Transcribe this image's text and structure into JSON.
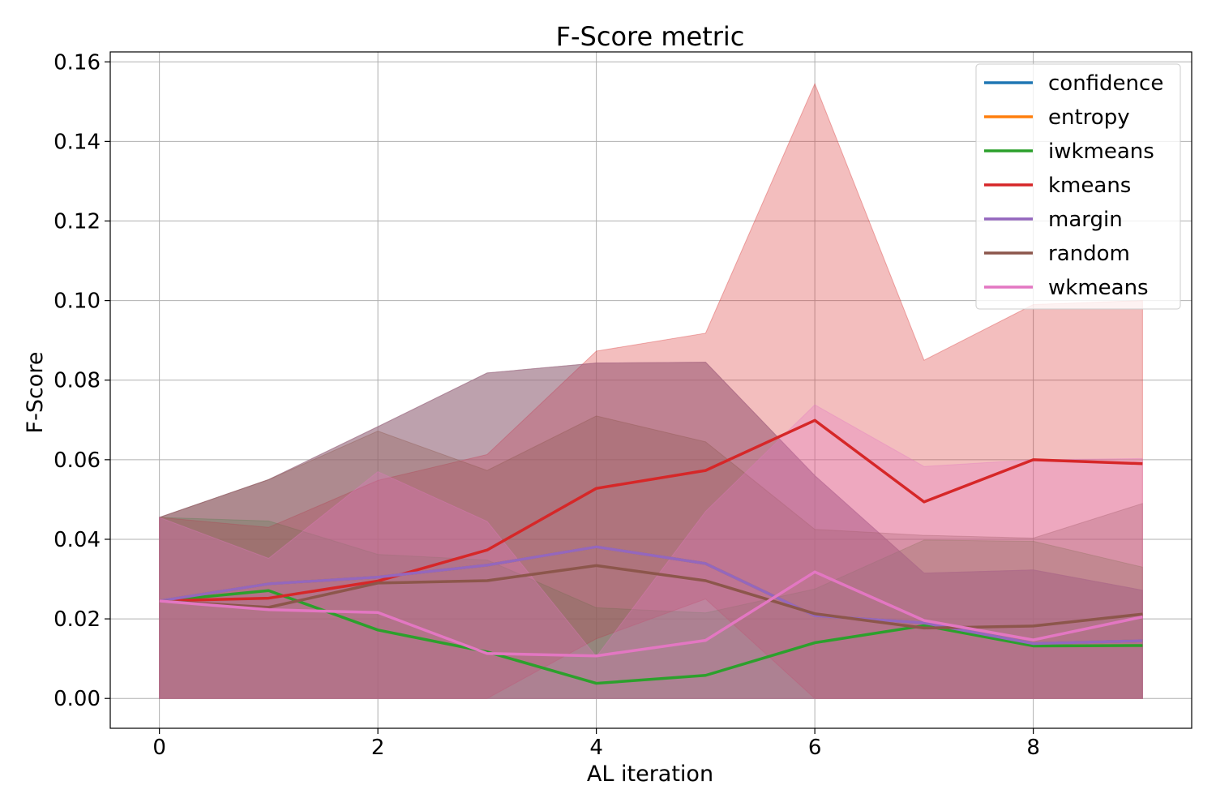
{
  "chart_data": {
    "type": "line",
    "title": "F-Score metric",
    "xlabel": "AL iteration",
    "ylabel": "F-Score",
    "xlim": [
      -0.45,
      9.45
    ],
    "ylim": [
      -0.0075,
      0.1625
    ],
    "x": [
      0,
      1,
      2,
      3,
      4,
      5,
      6,
      7,
      8,
      9
    ],
    "xticks": [
      0,
      2,
      4,
      6,
      8
    ],
    "xtick_labels": [
      "0",
      "2",
      "4",
      "6",
      "8"
    ],
    "yticks": [
      0.0,
      0.02,
      0.04,
      0.06,
      0.08,
      0.1,
      0.12,
      0.14,
      0.16
    ],
    "ytick_labels": [
      "0.00",
      "0.02",
      "0.04",
      "0.06",
      "0.08",
      "0.10",
      "0.12",
      "0.14",
      "0.16"
    ],
    "grid": true,
    "legend_position": "top-right",
    "series": [
      {
        "name": "confidence",
        "color": "#1f77b4",
        "values": [
          0.0245,
          0.0288,
          0.0305,
          0.0335,
          0.0381,
          0.0339,
          0.0208,
          0.019,
          0.0138,
          0.0145
        ],
        "lower": [
          0.0,
          0.0,
          0.0,
          0.0,
          0.0,
          0.0,
          0.0,
          0.0,
          0.0,
          0.0
        ],
        "upper": [
          0.0455,
          0.055,
          0.0683,
          0.0818,
          0.0843,
          0.0845,
          0.056,
          0.0315,
          0.0323,
          0.0272
        ]
      },
      {
        "name": "entropy",
        "color": "#ff7f0e",
        "values": [
          0.0245,
          0.0288,
          0.0305,
          0.0335,
          0.0381,
          0.0339,
          0.0208,
          0.019,
          0.0138,
          0.0145
        ],
        "lower": [
          0.0,
          0.0,
          0.0,
          0.0,
          0.0,
          0.0,
          0.0,
          0.0,
          0.0,
          0.0
        ],
        "upper": [
          0.0455,
          0.055,
          0.0683,
          0.0818,
          0.0843,
          0.0845,
          0.056,
          0.0315,
          0.0323,
          0.0272
        ]
      },
      {
        "name": "iwkmeans",
        "color": "#2ca02c",
        "values": [
          0.0245,
          0.0271,
          0.0172,
          0.0117,
          0.0038,
          0.0058,
          0.014,
          0.0183,
          0.0132,
          0.0133
        ],
        "lower": [
          0.0,
          0.0,
          0.0,
          0.0,
          0.0,
          0.0,
          0.0,
          0.0,
          0.0,
          0.0
        ],
        "upper": [
          0.0455,
          0.0446,
          0.0362,
          0.0348,
          0.0228,
          0.0215,
          0.0275,
          0.0398,
          0.0395,
          0.033
        ]
      },
      {
        "name": "kmeans",
        "color": "#d62728",
        "values": [
          0.0245,
          0.0252,
          0.0295,
          0.0373,
          0.0528,
          0.0573,
          0.0699,
          0.0494,
          0.06,
          0.059
        ],
        "lower": [
          0.0,
          0.0,
          0.0,
          0.0,
          0.015,
          0.025,
          0.0,
          0.0,
          0.0,
          0.0
        ],
        "upper": [
          0.0455,
          0.043,
          0.0548,
          0.0613,
          0.0873,
          0.0918,
          0.1545,
          0.085,
          0.099,
          0.1
        ]
      },
      {
        "name": "margin",
        "color": "#9467bd",
        "values": [
          0.0245,
          0.0288,
          0.0305,
          0.0335,
          0.0381,
          0.0339,
          0.0208,
          0.019,
          0.0138,
          0.0145
        ],
        "lower": [
          0.0,
          0.0,
          0.0,
          0.0,
          0.0,
          0.0,
          0.0,
          0.0,
          0.0,
          0.0
        ],
        "upper": [
          0.0455,
          0.055,
          0.0683,
          0.0818,
          0.0843,
          0.0845,
          0.056,
          0.0315,
          0.0323,
          0.0272
        ]
      },
      {
        "name": "random",
        "color": "#8c564b",
        "values": [
          0.0245,
          0.0229,
          0.029,
          0.0296,
          0.0334,
          0.0296,
          0.0213,
          0.0177,
          0.0182,
          0.0212
        ],
        "lower": [
          0.0,
          0.0,
          0.0,
          0.0,
          0.0,
          0.0,
          0.0,
          0.0,
          0.0,
          0.0
        ],
        "upper": [
          0.0455,
          0.055,
          0.0672,
          0.0573,
          0.071,
          0.0645,
          0.0425,
          0.041,
          0.0403,
          0.049
        ]
      },
      {
        "name": "wkmeans",
        "color": "#e377c2",
        "values": [
          0.0245,
          0.0223,
          0.0216,
          0.0113,
          0.0107,
          0.0146,
          0.0318,
          0.0196,
          0.0147,
          0.0205
        ],
        "lower": [
          0.0,
          0.0,
          0.0,
          0.0,
          0.0,
          0.0,
          0.0,
          0.0,
          0.0,
          0.0
        ],
        "upper": [
          0.0455,
          0.0352,
          0.057,
          0.0445,
          0.0105,
          0.047,
          0.0738,
          0.0583,
          0.06,
          0.0603
        ]
      }
    ]
  }
}
